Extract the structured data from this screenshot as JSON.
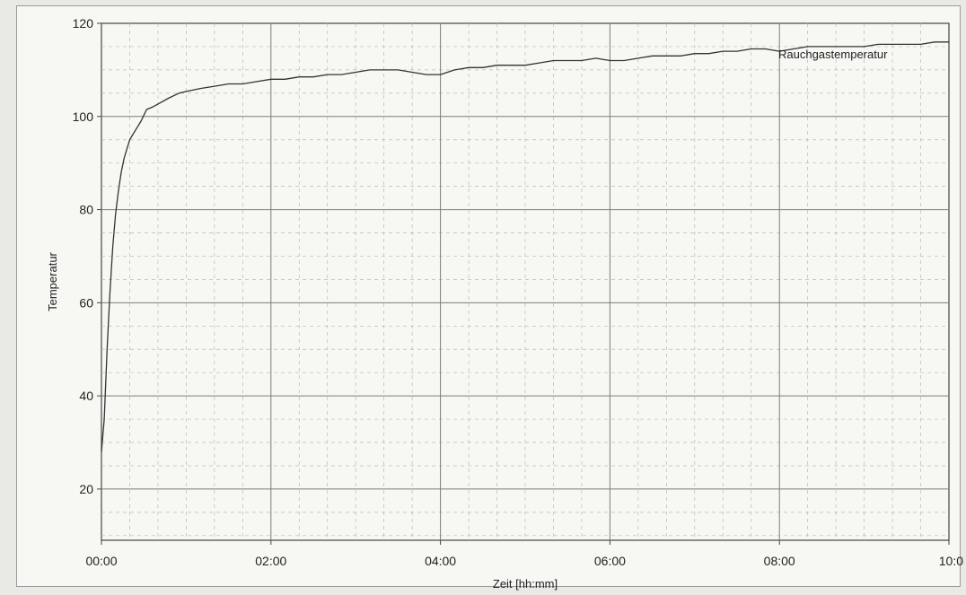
{
  "chart_data": {
    "type": "line",
    "title": "",
    "xlabel": "Zeit [hh:mm]",
    "ylabel": "Temperatur",
    "xlim": [
      0,
      600
    ],
    "ylim": [
      9,
      120
    ],
    "grid": true,
    "x_ticks": [
      {
        "value": 0,
        "label": "00:00"
      },
      {
        "value": 120,
        "label": "02:00"
      },
      {
        "value": 240,
        "label": "04:00"
      },
      {
        "value": 360,
        "label": "06:00"
      },
      {
        "value": 480,
        "label": "08:00"
      },
      {
        "value": 600,
        "label": "10:0"
      }
    ],
    "y_ticks": [
      {
        "value": 20,
        "label": "20"
      },
      {
        "value": 40,
        "label": "40"
      },
      {
        "value": 60,
        "label": "60"
      },
      {
        "value": 80,
        "label": "80"
      },
      {
        "value": 100,
        "label": "100"
      },
      {
        "value": 120,
        "label": "120"
      }
    ],
    "series": [
      {
        "name": "Rauchgastemperatur",
        "color": "#333333",
        "x": [
          0,
          2,
          4,
          6,
          8,
          10,
          12,
          14,
          16,
          18,
          20,
          22,
          25,
          28,
          32,
          36,
          42,
          48,
          55,
          62,
          70,
          80,
          90,
          100,
          110,
          120,
          130,
          140,
          150,
          160,
          170,
          180,
          190,
          200,
          210,
          220,
          230,
          240,
          250,
          260,
          270,
          280,
          290,
          300,
          310,
          320,
          330,
          340,
          350,
          360,
          370,
          380,
          390,
          400,
          410,
          420,
          430,
          440,
          450,
          460,
          470,
          480,
          490,
          500,
          510,
          520,
          530,
          540,
          550,
          560,
          570,
          580,
          590,
          600
        ],
        "y": [
          28,
          35,
          50,
          62,
          72,
          79,
          84,
          88,
          91,
          93,
          95,
          96,
          97.5,
          99,
          101.5,
          102,
          103,
          104,
          105,
          105.5,
          106,
          106.5,
          107,
          107,
          107.5,
          108,
          108,
          108.5,
          108.5,
          109,
          109,
          109.5,
          110,
          110,
          110,
          109.5,
          109,
          109,
          110,
          110.5,
          110.5,
          111,
          111,
          111,
          111.5,
          112,
          112,
          112,
          112.5,
          112,
          112,
          112.5,
          113,
          113,
          113,
          113.5,
          113.5,
          114,
          114,
          114.5,
          114.5,
          114,
          114.5,
          115,
          115,
          115,
          115,
          115,
          115.5,
          115.5,
          115.5,
          115.5,
          116,
          116
        ]
      }
    ]
  }
}
